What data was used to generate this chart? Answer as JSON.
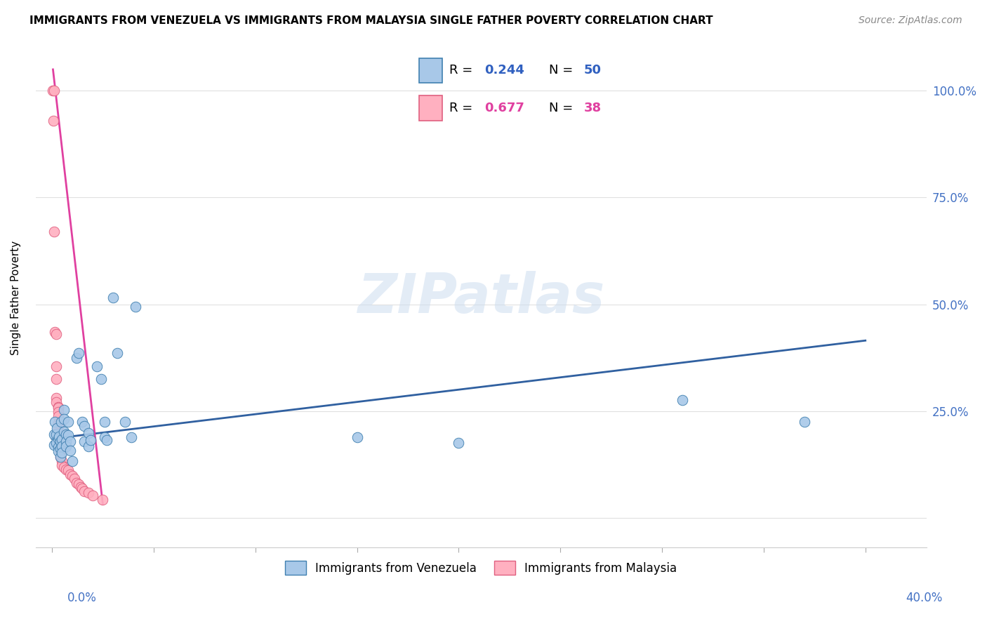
{
  "title": "IMMIGRANTS FROM VENEZUELA VS IMMIGRANTS FROM MALAYSIA SINGLE FATHER POVERTY CORRELATION CHART",
  "source": "Source: ZipAtlas.com",
  "ylabel": "Single Father Poverty",
  "yticks": [
    0.0,
    0.25,
    0.5,
    0.75,
    1.0
  ],
  "ytick_labels": [
    "",
    "25.0%",
    "50.0%",
    "75.0%",
    "100.0%"
  ],
  "xticks": [
    0.0,
    0.05,
    0.1,
    0.15,
    0.2,
    0.25,
    0.3,
    0.35,
    0.4
  ],
  "xlim": [
    -0.008,
    0.43
  ],
  "ylim": [
    -0.07,
    1.1
  ],
  "color_venezuela": "#a8c8e8",
  "color_malaysia": "#ffb0c0",
  "color_venezuela_line": "#3060a0",
  "color_malaysia_line": "#e040a0",
  "watermark": "ZIPatlas",
  "venezuela_points": [
    [
      0.001,
      0.195
    ],
    [
      0.001,
      0.17
    ],
    [
      0.0015,
      0.225
    ],
    [
      0.002,
      0.175
    ],
    [
      0.002,
      0.195
    ],
    [
      0.0025,
      0.21
    ],
    [
      0.003,
      0.165
    ],
    [
      0.003,
      0.185
    ],
    [
      0.003,
      0.155
    ],
    [
      0.0035,
      0.19
    ],
    [
      0.004,
      0.178
    ],
    [
      0.004,
      0.162
    ],
    [
      0.004,
      0.142
    ],
    [
      0.0045,
      0.225
    ],
    [
      0.005,
      0.183
    ],
    [
      0.005,
      0.167
    ],
    [
      0.005,
      0.152
    ],
    [
      0.006,
      0.252
    ],
    [
      0.006,
      0.232
    ],
    [
      0.006,
      0.202
    ],
    [
      0.007,
      0.195
    ],
    [
      0.007,
      0.178
    ],
    [
      0.007,
      0.168
    ],
    [
      0.008,
      0.225
    ],
    [
      0.008,
      0.193
    ],
    [
      0.009,
      0.178
    ],
    [
      0.009,
      0.158
    ],
    [
      0.01,
      0.132
    ],
    [
      0.012,
      0.375
    ],
    [
      0.013,
      0.385
    ],
    [
      0.015,
      0.225
    ],
    [
      0.016,
      0.215
    ],
    [
      0.016,
      0.178
    ],
    [
      0.018,
      0.198
    ],
    [
      0.018,
      0.168
    ],
    [
      0.019,
      0.182
    ],
    [
      0.022,
      0.355
    ],
    [
      0.024,
      0.325
    ],
    [
      0.026,
      0.225
    ],
    [
      0.026,
      0.188
    ],
    [
      0.027,
      0.182
    ],
    [
      0.03,
      0.515
    ],
    [
      0.032,
      0.385
    ],
    [
      0.036,
      0.225
    ],
    [
      0.039,
      0.188
    ],
    [
      0.041,
      0.495
    ],
    [
      0.31,
      0.275
    ],
    [
      0.37,
      0.225
    ],
    [
      0.2,
      0.175
    ],
    [
      0.15,
      0.188
    ]
  ],
  "malaysia_points": [
    [
      0.0005,
      1.0
    ],
    [
      0.0012,
      1.0
    ],
    [
      0.0008,
      0.93
    ],
    [
      0.001,
      0.67
    ],
    [
      0.0015,
      0.435
    ],
    [
      0.002,
      0.43
    ],
    [
      0.002,
      0.355
    ],
    [
      0.002,
      0.325
    ],
    [
      0.002,
      0.28
    ],
    [
      0.002,
      0.27
    ],
    [
      0.003,
      0.26
    ],
    [
      0.003,
      0.258
    ],
    [
      0.003,
      0.248
    ],
    [
      0.003,
      0.238
    ],
    [
      0.003,
      0.222
    ],
    [
      0.003,
      0.212
    ],
    [
      0.003,
      0.198
    ],
    [
      0.003,
      0.183
    ],
    [
      0.004,
      0.178
    ],
    [
      0.004,
      0.168
    ],
    [
      0.004,
      0.158
    ],
    [
      0.004,
      0.143
    ],
    [
      0.005,
      0.133
    ],
    [
      0.005,
      0.123
    ],
    [
      0.006,
      0.118
    ],
    [
      0.007,
      0.113
    ],
    [
      0.008,
      0.112
    ],
    [
      0.009,
      0.102
    ],
    [
      0.01,
      0.098
    ],
    [
      0.011,
      0.092
    ],
    [
      0.012,
      0.082
    ],
    [
      0.013,
      0.078
    ],
    [
      0.014,
      0.072
    ],
    [
      0.015,
      0.068
    ],
    [
      0.016,
      0.062
    ],
    [
      0.018,
      0.058
    ],
    [
      0.02,
      0.052
    ],
    [
      0.025,
      0.042
    ]
  ],
  "ven_line_x": [
    0.0,
    0.4
  ],
  "ven_line_y": [
    0.185,
    0.415
  ],
  "mal_line_x": [
    0.0005,
    0.025
  ],
  "mal_line_y": [
    1.05,
    0.032
  ]
}
